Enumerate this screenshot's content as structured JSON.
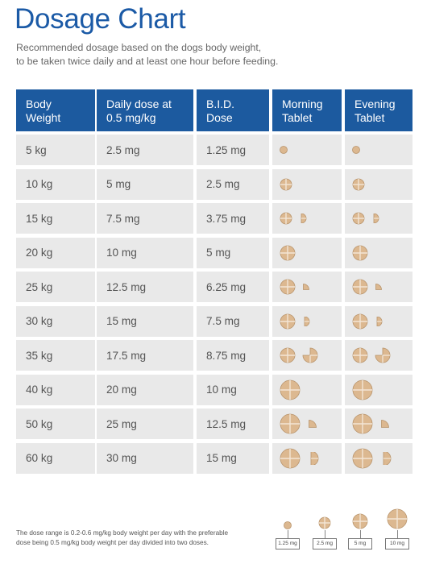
{
  "title": "Dosage Chart",
  "subtitle": [
    "Recommended dosage based on the dogs body weight,",
    "to be taken twice daily and at least one hour before feeding."
  ],
  "table": {
    "headers": [
      [
        "Body",
        "Weight"
      ],
      [
        "Daily dose at",
        "0.5 mg/kg"
      ],
      [
        "B.I.D.",
        "Dose"
      ],
      [
        "Morning",
        "Tablet"
      ],
      [
        "Evening",
        "Tablet"
      ]
    ],
    "rows": [
      {
        "weight": "5 kg",
        "daily": "2.5 mg",
        "bid": "1.25 mg",
        "tablets": [
          "quarter"
        ]
      },
      {
        "weight": "10 kg",
        "daily": "5 mg",
        "bid": "2.5 mg",
        "tablets": [
          "2.5mg"
        ]
      },
      {
        "weight": "15 kg",
        "daily": "7.5 mg",
        "bid": "3.75 mg",
        "tablets": [
          "2.5mg",
          "half-small"
        ]
      },
      {
        "weight": "20 kg",
        "daily": "10 mg",
        "bid": "5 mg",
        "tablets": [
          "5mg"
        ]
      },
      {
        "weight": "25 kg",
        "daily": "12.5 mg",
        "bid": "6.25 mg",
        "tablets": [
          "5mg",
          "quarter-wedge"
        ]
      },
      {
        "weight": "30 kg",
        "daily": "15 mg",
        "bid": "7.5 mg",
        "tablets": [
          "5mg",
          "half-small"
        ]
      },
      {
        "weight": "35 kg",
        "daily": "17.5 mg",
        "bid": "8.75 mg",
        "tablets": [
          "5mg",
          "three-quarter"
        ]
      },
      {
        "weight": "40 kg",
        "daily": "20 mg",
        "bid": "10 mg",
        "tablets": [
          "10mg"
        ]
      },
      {
        "weight": "50 kg",
        "daily": "25 mg",
        "bid": "12.5 mg",
        "tablets": [
          "10mg",
          "quarter-wedge-large"
        ]
      },
      {
        "weight": "60 kg",
        "daily": "30 mg",
        "bid": "15 mg",
        "tablets": [
          "10mg",
          "half-large"
        ]
      }
    ]
  },
  "footnote": [
    "The dose range is 0.2-0.6 mg/kg body weight per day with the preferable",
    "dose being 0.5 mg/kg body weight per day divided into two doses."
  ],
  "legend": [
    "1.25 mg",
    "2.5 mg",
    "5 mg",
    "10 mg"
  ],
  "colors": {
    "header_bg": "#1c5a9f",
    "row_bg": "#e9e9e9",
    "title": "#1b5aa6",
    "tablet": "#dcb890"
  }
}
